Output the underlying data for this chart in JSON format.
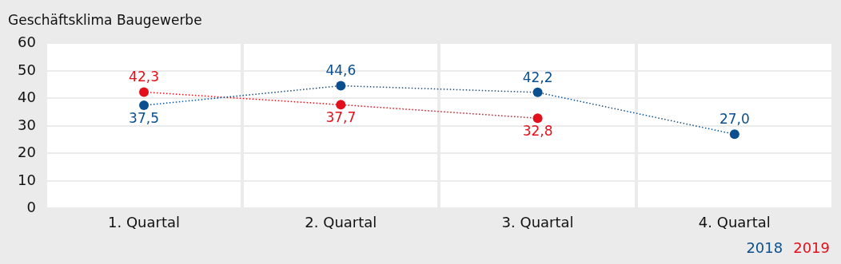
{
  "chart_data": {
    "type": "line",
    "title": "Geschäftsklima Baugewerbe",
    "categories": [
      "1. Quartal",
      "2. Quartal",
      "3. Quartal",
      "4. Quartal"
    ],
    "series": [
      {
        "name": "2018",
        "color": "#0a4f8f",
        "values": [
          37.5,
          44.6,
          42.2,
          27.0
        ],
        "value_labels": [
          "37,5",
          "44,6",
          "42,2",
          "27,0"
        ]
      },
      {
        "name": "2019",
        "color": "#e3101b",
        "values": [
          42.3,
          37.7,
          32.8,
          null
        ],
        "value_labels": [
          "42,3",
          "37,7",
          "32,8",
          null
        ]
      }
    ],
    "ylim": [
      0,
      60
    ],
    "yticks": [
      0,
      10,
      20,
      30,
      40,
      50,
      60
    ],
    "grid": true,
    "legend": "bottom right",
    "marker": "circle",
    "line_style": "dotted"
  }
}
